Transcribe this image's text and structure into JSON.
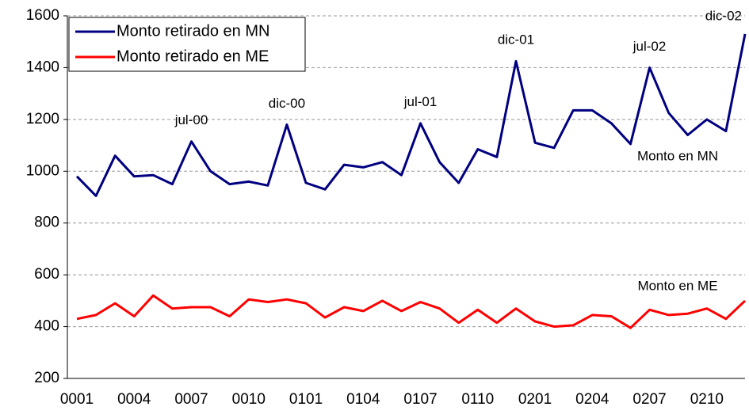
{
  "chart_data": {
    "type": "line",
    "categories": [
      "0001",
      null,
      null,
      "0004",
      null,
      null,
      "0007",
      null,
      null,
      "0010",
      null,
      null,
      "0101",
      null,
      null,
      "0104",
      null,
      null,
      "0107",
      null,
      null,
      "0110",
      null,
      null,
      "0201",
      null,
      null,
      "0204",
      null,
      null,
      "0207",
      null,
      null,
      "0210",
      null,
      null
    ],
    "series": [
      {
        "name": "Monto retirado en MN",
        "color": "#000080",
        "label": "Monto en MN",
        "values": [
          980,
          905,
          1060,
          980,
          985,
          950,
          1115,
          1000,
          950,
          960,
          945,
          1180,
          955,
          930,
          1025,
          1015,
          1035,
          985,
          1185,
          1035,
          955,
          1085,
          1055,
          1425,
          1110,
          1090,
          1235,
          1235,
          1185,
          1105,
          1400,
          1225,
          1140,
          1200,
          1155,
          1530
        ],
        "point_labels": [
          null,
          null,
          null,
          null,
          null,
          null,
          "jul-00",
          null,
          null,
          null,
          null,
          "dic-00",
          null,
          null,
          null,
          null,
          null,
          null,
          "jul-01",
          null,
          null,
          null,
          null,
          "dic-01",
          null,
          null,
          null,
          null,
          null,
          null,
          "jul-02",
          null,
          null,
          null,
          null,
          "dic-02"
        ]
      },
      {
        "name": "Monto retirado en ME",
        "color": "#ff0000",
        "label": "Monto en ME",
        "values": [
          430,
          445,
          490,
          440,
          520,
          470,
          475,
          475,
          440,
          505,
          495,
          505,
          490,
          435,
          475,
          460,
          500,
          460,
          495,
          470,
          415,
          465,
          415,
          470,
          420,
          400,
          405,
          445,
          440,
          395,
          465,
          445,
          450,
          470,
          430,
          500
        ]
      }
    ],
    "ylim": [
      200,
      1600
    ],
    "yticks": [
      200,
      400,
      600,
      800,
      1000,
      1200,
      1400,
      1600
    ],
    "grid": true,
    "legend": "top-left"
  }
}
